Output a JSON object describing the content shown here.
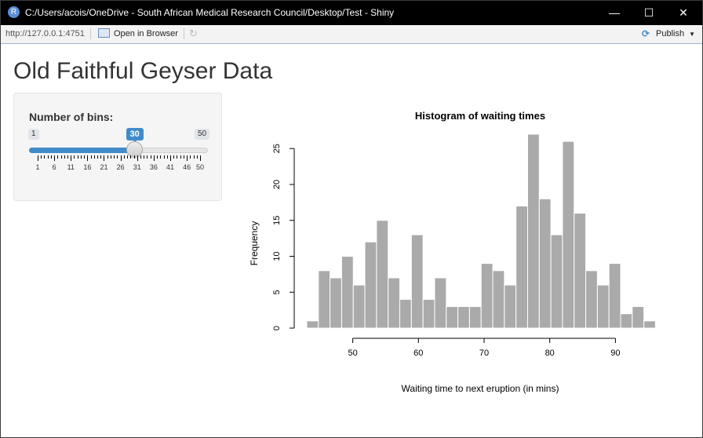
{
  "window": {
    "title": "C:/Users/acois/OneDrive - South African Medical Research Council/Desktop/Test - Shiny",
    "app_icon": "R",
    "minimize_icon": "—",
    "maximize_icon": "☐",
    "close_icon": "✕"
  },
  "toolbar": {
    "url": "http://127.0.0.1:4751",
    "open_in_browser": "Open in Browser",
    "publish": "Publish",
    "refresh_icon": "↻",
    "publish_icon": "⟳",
    "caret": "▼"
  },
  "page": {
    "title": "Old Faithful Geyser Data"
  },
  "slider": {
    "label": "Number of bins:",
    "min": 1,
    "max": 50,
    "value": 30,
    "min_label": "1",
    "max_label": "50",
    "value_label": "30",
    "tick_labels": [
      "1",
      "6",
      "11",
      "16",
      "21",
      "26",
      "31",
      "36",
      "41",
      "46",
      "50"
    ]
  },
  "chart_data": {
    "type": "bar",
    "title": "Histogram of waiting times",
    "xlabel": "Waiting time to next eruption (in mins)",
    "ylabel": "Frequency",
    "bin_start": 43,
    "bin_width": 1.77,
    "values": [
      1,
      8,
      7,
      10,
      6,
      12,
      15,
      7,
      4,
      13,
      4,
      7,
      3,
      3,
      3,
      9,
      8,
      6,
      17,
      27,
      18,
      13,
      26,
      16,
      8,
      6,
      9,
      2,
      3,
      1
    ],
    "xlim": [
      43,
      96
    ],
    "ylim": [
      0,
      27
    ],
    "xticks": [
      50,
      60,
      70,
      80,
      90
    ],
    "yticks": [
      0,
      5,
      10,
      15,
      20,
      25
    ],
    "bar_color": "#aaaaaa"
  }
}
